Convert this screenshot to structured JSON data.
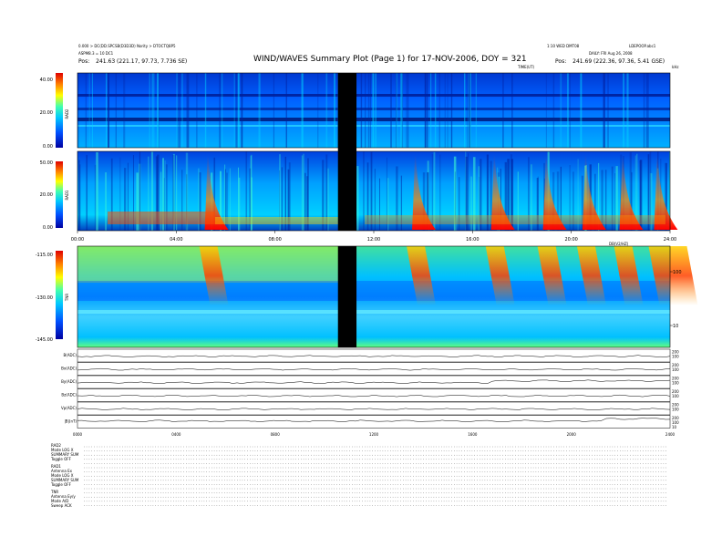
{
  "header": {
    "title": "WIND/WAVES Summary Plot (Page 1) for 17-NOV-2006, DOY = 321",
    "left_line1": "0.000 > DC(DD.SPCSB(D3D3D) Nority > DTOCTQ8P5",
    "left_line2": "ASPM8.3 = 10 DC1",
    "left_pos_label": "Pos:",
    "left_pos_value": "241.63 (221.17, 97.73, 7.736 SE)",
    "right_line1": "1:10 WED DMT08",
    "right_line2": "LDEPOOP.abc1",
    "right_line3": "DAILY: FRI Aug 26, 2008",
    "right_pos_label": "Pos:",
    "right_pos_value": "241.69 (222.36, 97.36, 5.41 GSE)",
    "time_axis_label": "TIME(UT)",
    "time_axis_unit": "kHz",
    "tnr_axis_label": "DB(V2/HZ)"
  },
  "panels": {
    "rad2": {
      "label": "RAD2",
      "ticks": [
        "40.00",
        "20.00",
        "0.00"
      ]
    },
    "rad1": {
      "label": "RAD1",
      "ticks": [
        "50.00",
        "20.00",
        "0.00"
      ]
    },
    "tnr": {
      "label": "TNR",
      "ticks": [
        "-115.00",
        "-130.00",
        "-145.00"
      ],
      "right_ticks": [
        "100",
        "10"
      ]
    },
    "mag": [
      {
        "label": "B(ADC)",
        "ticks": [
          "200",
          "100"
        ]
      },
      {
        "label": "Bx(ADC)",
        "ticks": [
          "200",
          "100"
        ]
      },
      {
        "label": "By(ADC)",
        "ticks": [
          "200",
          "100"
        ]
      },
      {
        "label": "Bz(ADC)",
        "ticks": [
          "200",
          "100"
        ]
      },
      {
        "label": "Vp(ADC)",
        "ticks": [
          "200",
          "100"
        ]
      },
      {
        "label": "|B|(nT)",
        "ticks": [
          "200",
          "100",
          "10"
        ]
      }
    ]
  },
  "chart_data": {
    "type": "heatmap",
    "title": "WIND/WAVES Summary Plot (Page 1) for 17-NOV-2006, DOY = 321",
    "xlabel": "TIME(UT)",
    "x_ticks": [
      "00:00",
      "04:00",
      "08:00",
      "12:00",
      "16:00",
      "20:00",
      "24:00"
    ],
    "x_ticks_bottom": [
      "0000",
      "0400",
      "0800",
      "1200",
      "1600",
      "2000",
      "2400"
    ],
    "xlim": [
      "00:00",
      "24:00"
    ],
    "data_gap_hours": [
      10.55,
      11.3
    ],
    "panels": [
      {
        "name": "RAD2",
        "ylim": [
          0,
          40
        ],
        "y_ticks": [
          0,
          20,
          40
        ]
      },
      {
        "name": "RAD1",
        "ylim": [
          0,
          50
        ],
        "y_ticks": [
          0,
          20,
          50
        ]
      },
      {
        "name": "TNR",
        "ylim": [
          -145,
          -115
        ],
        "y_ticks": [
          -145,
          -130,
          -115
        ],
        "unit": "kHz",
        "right_ticks": [
          10,
          100
        ]
      }
    ],
    "bursts_hours": [
      5.3,
      13.7,
      16.9,
      19.0,
      20.6,
      22.1,
      23.5
    ],
    "colormap": [
      "#0000a0",
      "#0050ff",
      "#00c8ff",
      "#40ffb0",
      "#ffff00",
      "#ff8000",
      "#e00000"
    ]
  },
  "footer": {
    "rad2": [
      {
        "k": "RAD2",
        "v": ""
      },
      {
        "k": "Mode",
        "v": "LOG X"
      },
      {
        "k": "SUMMARY",
        "v": "SUM"
      },
      {
        "k": "Toggle",
        "v": "OFF"
      }
    ],
    "rad1": [
      {
        "k": "RAD1",
        "v": ""
      },
      {
        "k": "Antenna",
        "v": "Ex"
      },
      {
        "k": "Mode",
        "v": "LOG X"
      },
      {
        "k": "SUMMARY",
        "v": "SUM"
      },
      {
        "k": "Toggle",
        "v": "OFF"
      }
    ],
    "tnr": [
      {
        "k": "TNR",
        "v": ""
      },
      {
        "k": "Antenna",
        "v": "Ey/y"
      },
      {
        "k": "Mode",
        "v": "A/D"
      },
      {
        "k": "Sweep",
        "v": "ACK"
      }
    ]
  }
}
